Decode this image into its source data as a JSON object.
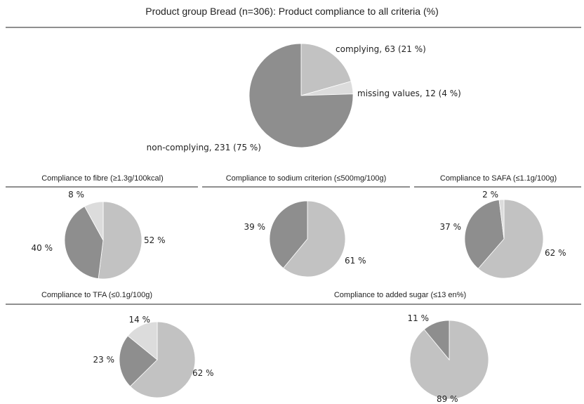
{
  "title": "Product group Bread (n=306): Product compliance to all criteria (%)",
  "colors": {
    "light": "#c2c2c2",
    "medium": "#8e8e8e",
    "lightest": "#dcdcdc",
    "rule": "#8f8f8f"
  },
  "chart_data": [
    {
      "type": "pie",
      "title": "",
      "slices": [
        {
          "label": "complying, 63 (21 %)",
          "value": 63,
          "color": "#c2c2c2"
        },
        {
          "label": "missing values, 12 (4 %)",
          "value": 12,
          "color": "#dcdcdc"
        },
        {
          "label": "non-complying, 231 (75 %)",
          "value": 231,
          "color": "#8e8e8e"
        }
      ]
    },
    {
      "type": "pie",
      "title": "Compliance to fibre (≥1.3g/100kcal)",
      "slices": [
        {
          "label": "52 %",
          "value": 52,
          "color": "#c2c2c2"
        },
        {
          "label": "40 %",
          "value": 40,
          "color": "#8e8e8e"
        },
        {
          "label": "8 %",
          "value": 8,
          "color": "#dcdcdc"
        }
      ]
    },
    {
      "type": "pie",
      "title": "Compliance to sodium criterion (≤500mg/100g)",
      "slices": [
        {
          "label": "61 %",
          "value": 61,
          "color": "#c2c2c2"
        },
        {
          "label": "39 %",
          "value": 39,
          "color": "#8e8e8e"
        }
      ]
    },
    {
      "type": "pie",
      "title": "Compliance to SAFA (≤1.1g/100g)",
      "slices": [
        {
          "label": "62 %",
          "value": 62,
          "color": "#c2c2c2"
        },
        {
          "label": "37 %",
          "value": 37,
          "color": "#8e8e8e"
        },
        {
          "label": "2 %",
          "value": 2,
          "color": "#dcdcdc"
        }
      ]
    },
    {
      "type": "pie",
      "title": "Compliance to TFA (≤0.1g/100g)",
      "slices": [
        {
          "label": "62 %",
          "value": 62,
          "color": "#c2c2c2"
        },
        {
          "label": "23 %",
          "value": 23,
          "color": "#8e8e8e"
        },
        {
          "label": "14 %",
          "value": 14,
          "color": "#dcdcdc"
        }
      ]
    },
    {
      "type": "pie",
      "title": "Compliance to added sugar (≤13 en%)",
      "slices": [
        {
          "label": "89 %",
          "value": 89,
          "color": "#c2c2c2"
        },
        {
          "label": "11 %",
          "value": 11,
          "color": "#8e8e8e"
        }
      ]
    }
  ]
}
